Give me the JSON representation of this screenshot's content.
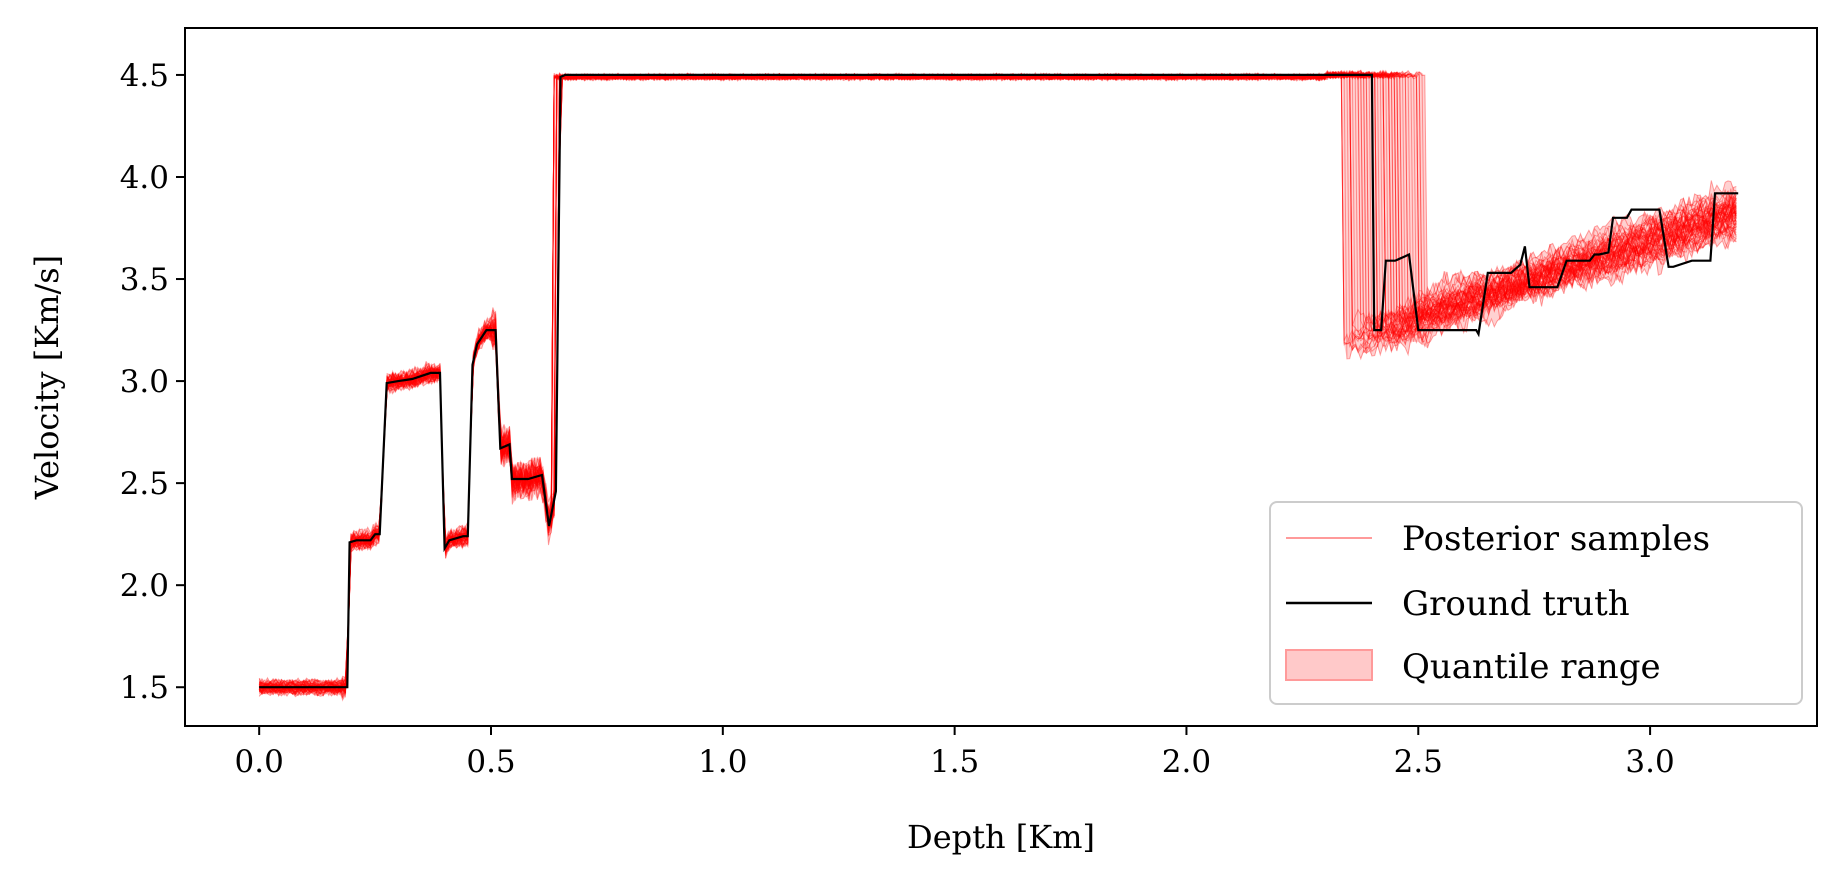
{
  "chart_data": {
    "type": "line",
    "title": "",
    "xlabel": "Depth [Km]",
    "ylabel": "Velocity [Km/s]",
    "xlim": [
      -0.16,
      3.36
    ],
    "ylim": [
      1.31,
      4.73
    ],
    "xticks": [
      0.0,
      0.5,
      1.0,
      1.5,
      2.0,
      2.5,
      3.0
    ],
    "xtick_labels": [
      "0.0",
      "0.5",
      "1.0",
      "1.5",
      "2.0",
      "2.5",
      "3.0"
    ],
    "yticks": [
      1.5,
      2.0,
      2.5,
      3.0,
      3.5,
      4.0,
      4.5
    ],
    "ytick_labels": [
      "1.5",
      "2.0",
      "2.5",
      "3.0",
      "3.5",
      "4.0",
      "4.5"
    ],
    "grid": false,
    "legend": {
      "position": "lower-right",
      "entries": [
        {
          "label": "Posterior samples",
          "style": "line",
          "color": "#ff9a9a"
        },
        {
          "label": "Ground truth",
          "style": "line",
          "color": "#000000"
        },
        {
          "label": "Quantile range",
          "style": "patch",
          "color": "#ffc9c9"
        }
      ]
    },
    "series": [
      {
        "name": "Ground truth",
        "color": "#000000",
        "x": [
          0.0,
          0.19,
          0.195,
          0.21,
          0.24,
          0.25,
          0.26,
          0.275,
          0.3,
          0.33,
          0.37,
          0.39,
          0.4,
          0.41,
          0.44,
          0.45,
          0.46,
          0.47,
          0.49,
          0.51,
          0.52,
          0.54,
          0.545,
          0.58,
          0.61,
          0.625,
          0.64,
          0.65,
          0.66,
          2.4,
          2.405,
          2.42,
          2.43,
          2.45,
          2.47,
          2.48,
          2.5,
          2.625,
          2.63,
          2.65,
          2.7,
          2.72,
          2.73,
          2.74,
          2.8,
          2.82,
          2.87,
          2.88,
          2.89,
          2.91,
          2.92,
          2.95,
          2.96,
          3.0,
          3.01,
          3.02,
          3.04,
          3.05,
          3.09,
          3.1,
          3.13,
          3.14,
          3.15,
          3.19
        ],
        "values": [
          1.5,
          1.5,
          2.21,
          2.22,
          2.22,
          2.25,
          2.25,
          2.99,
          3.0,
          3.01,
          3.04,
          3.04,
          2.18,
          2.22,
          2.24,
          2.24,
          3.08,
          3.18,
          3.25,
          3.25,
          2.67,
          2.69,
          2.52,
          2.52,
          2.54,
          2.29,
          2.46,
          4.49,
          4.5,
          4.5,
          3.25,
          3.25,
          3.59,
          3.59,
          3.61,
          3.62,
          3.25,
          3.25,
          3.23,
          3.53,
          3.53,
          3.57,
          3.66,
          3.46,
          3.46,
          3.59,
          3.59,
          3.62,
          3.62,
          3.63,
          3.8,
          3.8,
          3.84,
          3.84,
          3.84,
          3.84,
          3.56,
          3.56,
          3.59,
          3.59,
          3.59,
          3.92,
          3.92,
          3.92
        ]
      },
      {
        "name": "Posterior samples",
        "color": "#ff0000",
        "count": 60
      }
    ]
  }
}
